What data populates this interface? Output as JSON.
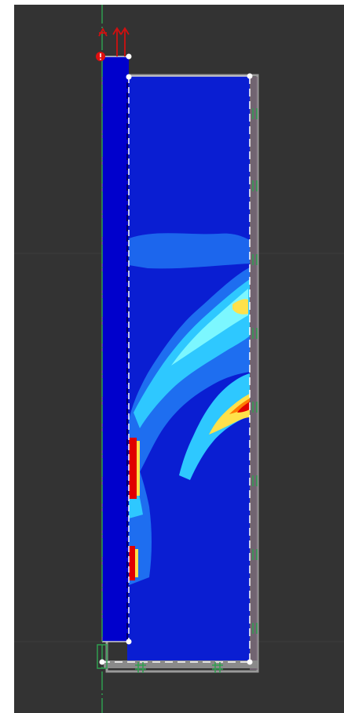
{
  "viewport": {
    "background": "#333333",
    "grid_line_color": "#3c3c3c",
    "symmetry_axis_color": "#2f9e4f"
  },
  "model": {
    "pile_fill": "#0000cc",
    "soil_background": "#0a1ed2",
    "boundary_color": "#bdbdbd",
    "interface_line": "dashed",
    "node_marker_color": "#ffffff"
  },
  "legend_colors": {
    "low": "#0a1ed2",
    "low_mid": "#1e6ef0",
    "mid": "#2ec8ff",
    "mid_high": "#7cf7ff",
    "high_low": "#ffe14a",
    "high": "#ff7a00",
    "max": "#e00000"
  },
  "icons": {
    "load": "upward-arrow-load-icon",
    "fixity": "roller-support-icon",
    "error": "error-marker-icon"
  }
}
